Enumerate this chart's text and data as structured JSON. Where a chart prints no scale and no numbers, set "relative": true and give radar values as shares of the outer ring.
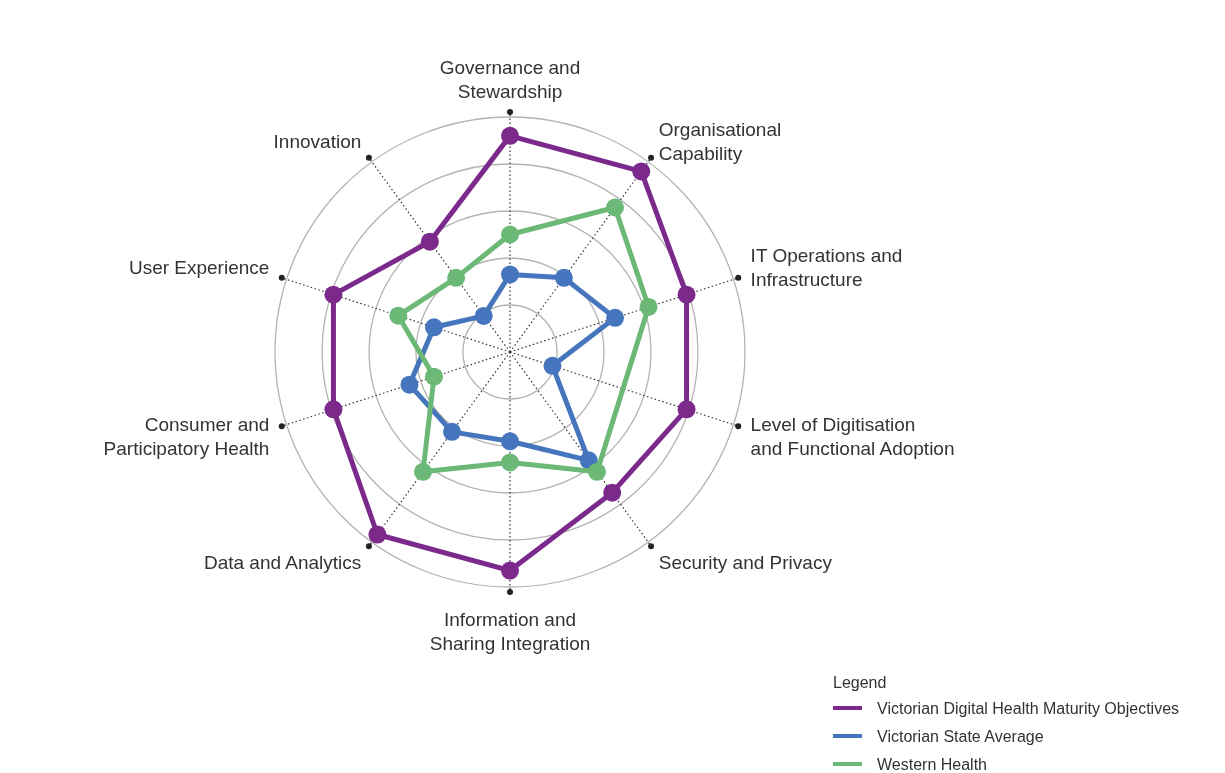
{
  "chart_data": {
    "type": "radar",
    "relative": true,
    "grid": true,
    "marker": "circle",
    "legend": "bottom right",
    "legend_title": "Legend",
    "categories": [
      "Governance and\nStewardship",
      "Organisational\nCapability",
      "IT Operations and\nInfrastructure",
      "Level of Digitisation\nand Functional Adoption",
      "Security and Privacy",
      "Information and\nSharing Integration",
      "Data and Analytics",
      "Consumer and\nParticipatory Health",
      "User Experience",
      "Innovation"
    ],
    "series": [
      {
        "name": "Victorian Digital Health Maturity Objectives",
        "color": "#7b2a8c",
        "values": [
          0.92,
          0.95,
          0.79,
          0.79,
          0.74,
          0.93,
          0.96,
          0.79,
          0.79,
          0.58
        ]
      },
      {
        "name": "Victorian State Average",
        "color": "#4575bd",
        "values": [
          0.33,
          0.39,
          0.47,
          0.19,
          0.57,
          0.38,
          0.42,
          0.45,
          0.34,
          0.19
        ]
      },
      {
        "name": "Western Health",
        "color": "#6bb877",
        "values": [
          0.5,
          0.76,
          0.62,
          null,
          0.63,
          0.47,
          0.63,
          0.34,
          0.5,
          0.39
        ]
      }
    ]
  }
}
